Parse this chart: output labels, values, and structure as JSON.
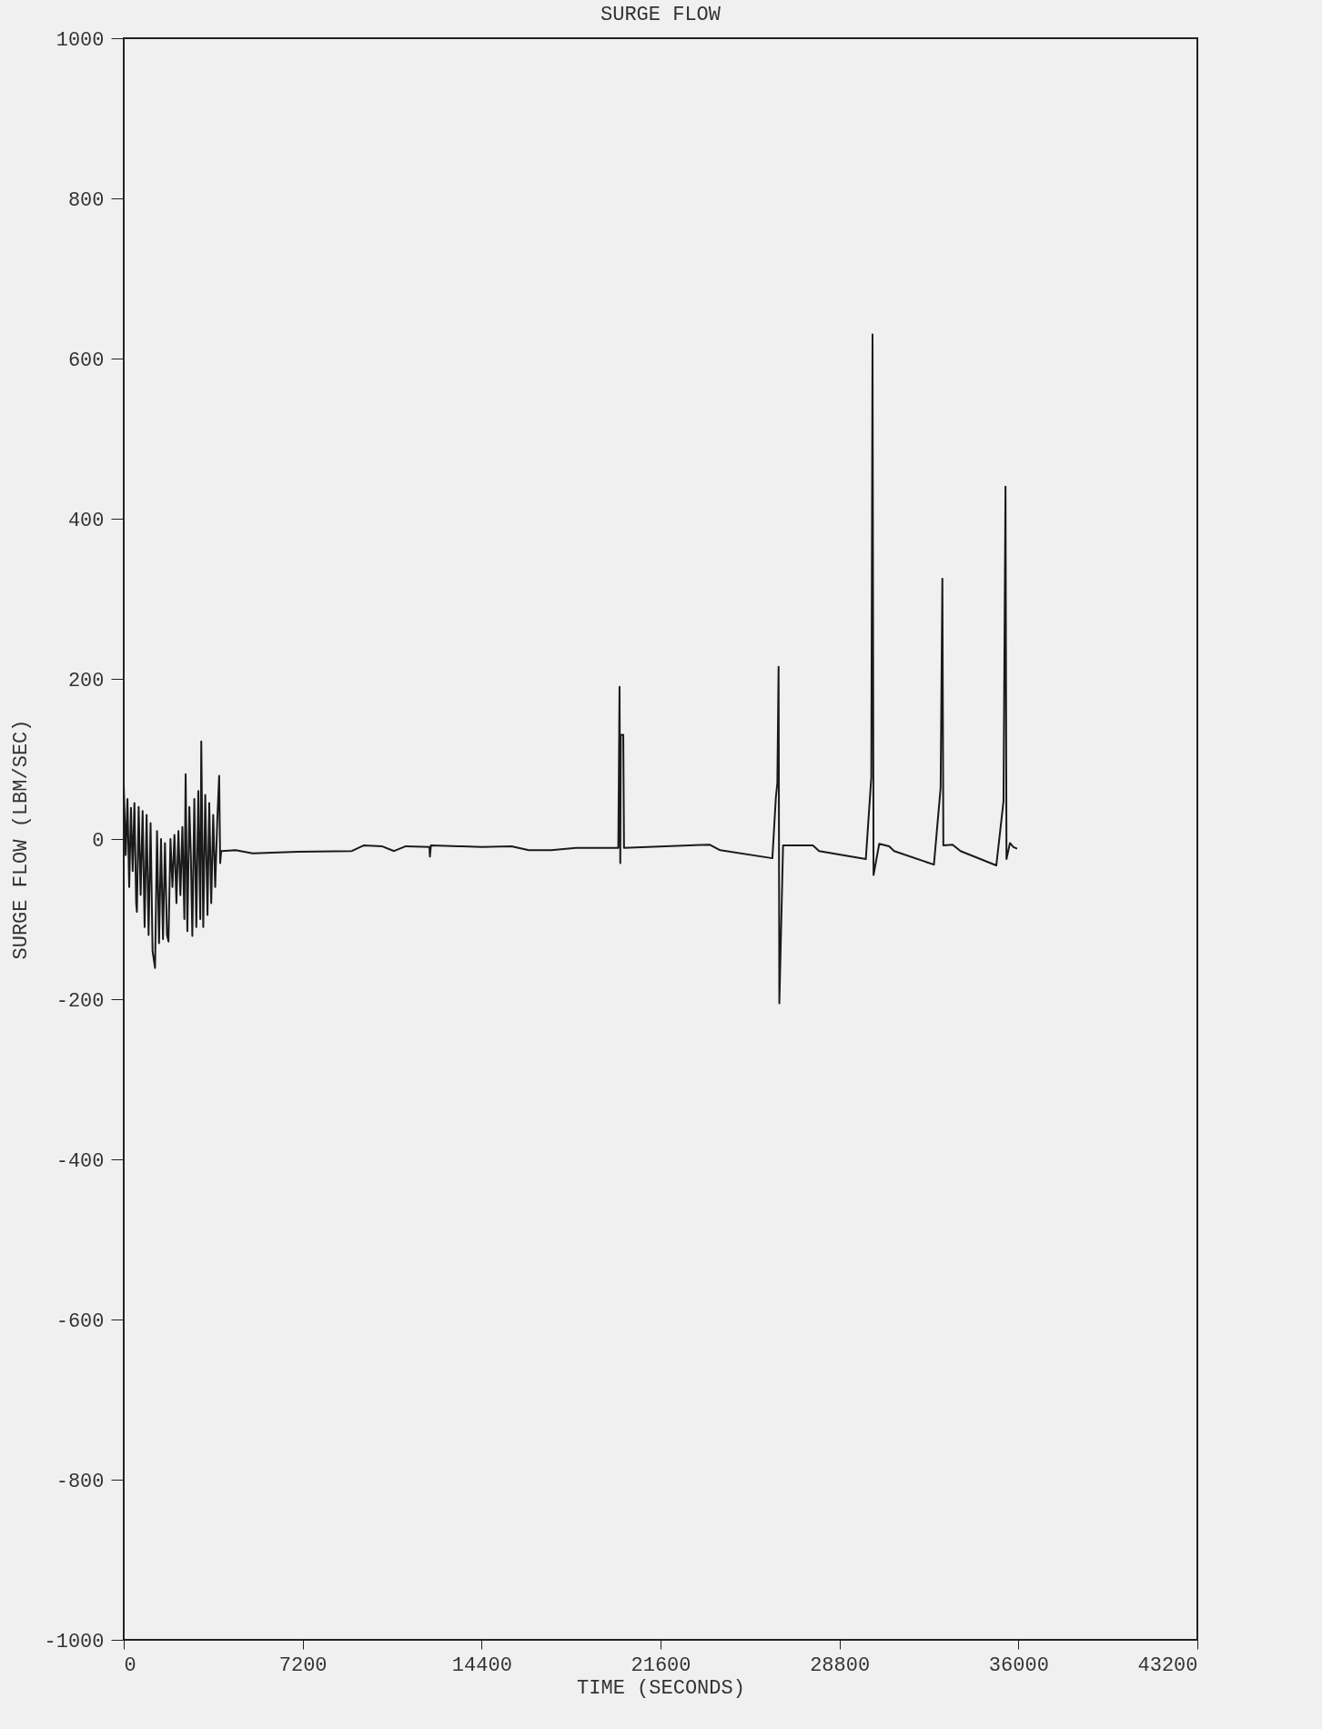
{
  "chart_data": {
    "type": "line",
    "title": "SURGE FLOW",
    "xlabel": "TIME (SECONDS)",
    "ylabel": "SURGE FLOW (LBM/SEC)",
    "xlim": [
      0,
      43200
    ],
    "xticks": [
      0,
      7200,
      14400,
      21600,
      28800,
      36000,
      43200
    ],
    "ylim": [
      -1000,
      1000
    ],
    "yticks": [
      -1000,
      -800,
      -600,
      -400,
      -200,
      0,
      200,
      400,
      600,
      800,
      1000
    ],
    "grid": false,
    "series": [
      {
        "color": "#1a1a1a",
        "x": [
          0,
          80,
          150,
          220,
          290,
          360,
          430,
          500,
          530,
          600,
          680,
          760,
          840,
          920,
          1000,
          1080,
          1160,
          1260,
          1340,
          1420,
          1500,
          1580,
          1660,
          1740,
          1800,
          1880,
          1960,
          2040,
          2120,
          2200,
          2280,
          2360,
          2440,
          2490,
          2560,
          2640,
          2700,
          2760,
          2840,
          2920,
          3000,
          3080,
          3120,
          3200,
          3280,
          3370,
          3440,
          3520,
          3600,
          3680,
          3760,
          3840,
          3880,
          3920,
          4500,
          5190,
          7000,
          9180,
          9650,
          10380,
          10880,
          11350,
          12300,
          12320,
          12360,
          13500,
          14400,
          15600,
          16300,
          17200,
          18200,
          19900,
          19950,
          19980,
          20000,
          20100,
          20130,
          23570,
          24000,
          26100,
          26240,
          26300,
          26350,
          26380,
          26530,
          27730,
          27980,
          29860,
          30080,
          30130,
          30170,
          30400,
          30800,
          31000,
          32600,
          32870,
          32940,
          32980,
          33350,
          33670,
          35110,
          35400,
          35480,
          35520,
          35660,
          35800,
          35950
        ],
        "values": [
          68,
          -20,
          50,
          -60,
          39,
          -40,
          45,
          -80,
          -91,
          40,
          -70,
          35,
          -110,
          30,
          -120,
          20,
          -140,
          -161,
          10,
          -130,
          0,
          -125,
          -5,
          -120,
          -128,
          0,
          -60,
          5,
          -80,
          10,
          -70,
          15,
          -100,
          81,
          -115,
          40,
          -20,
          -121,
          50,
          -110,
          60,
          -100,
          122,
          -110,
          55,
          -95,
          45,
          -80,
          30,
          -60,
          20,
          79,
          -30,
          -15,
          -14,
          -18,
          -16,
          -15,
          -8,
          -9,
          -15,
          -9,
          -10,
          -22,
          -8,
          -9,
          -10,
          -9,
          -14,
          -14,
          -11,
          -11,
          190,
          -30,
          130,
          130,
          -11,
          -7,
          -14,
          -24,
          52,
          70,
          215,
          -205,
          -8,
          -8,
          -15,
          -25,
          77,
          630,
          -45,
          -6,
          -9,
          -15,
          -32,
          64,
          325,
          -8,
          -7,
          -15,
          -33,
          47,
          440,
          -25,
          -5,
          -10,
          -12
        ]
      }
    ]
  }
}
